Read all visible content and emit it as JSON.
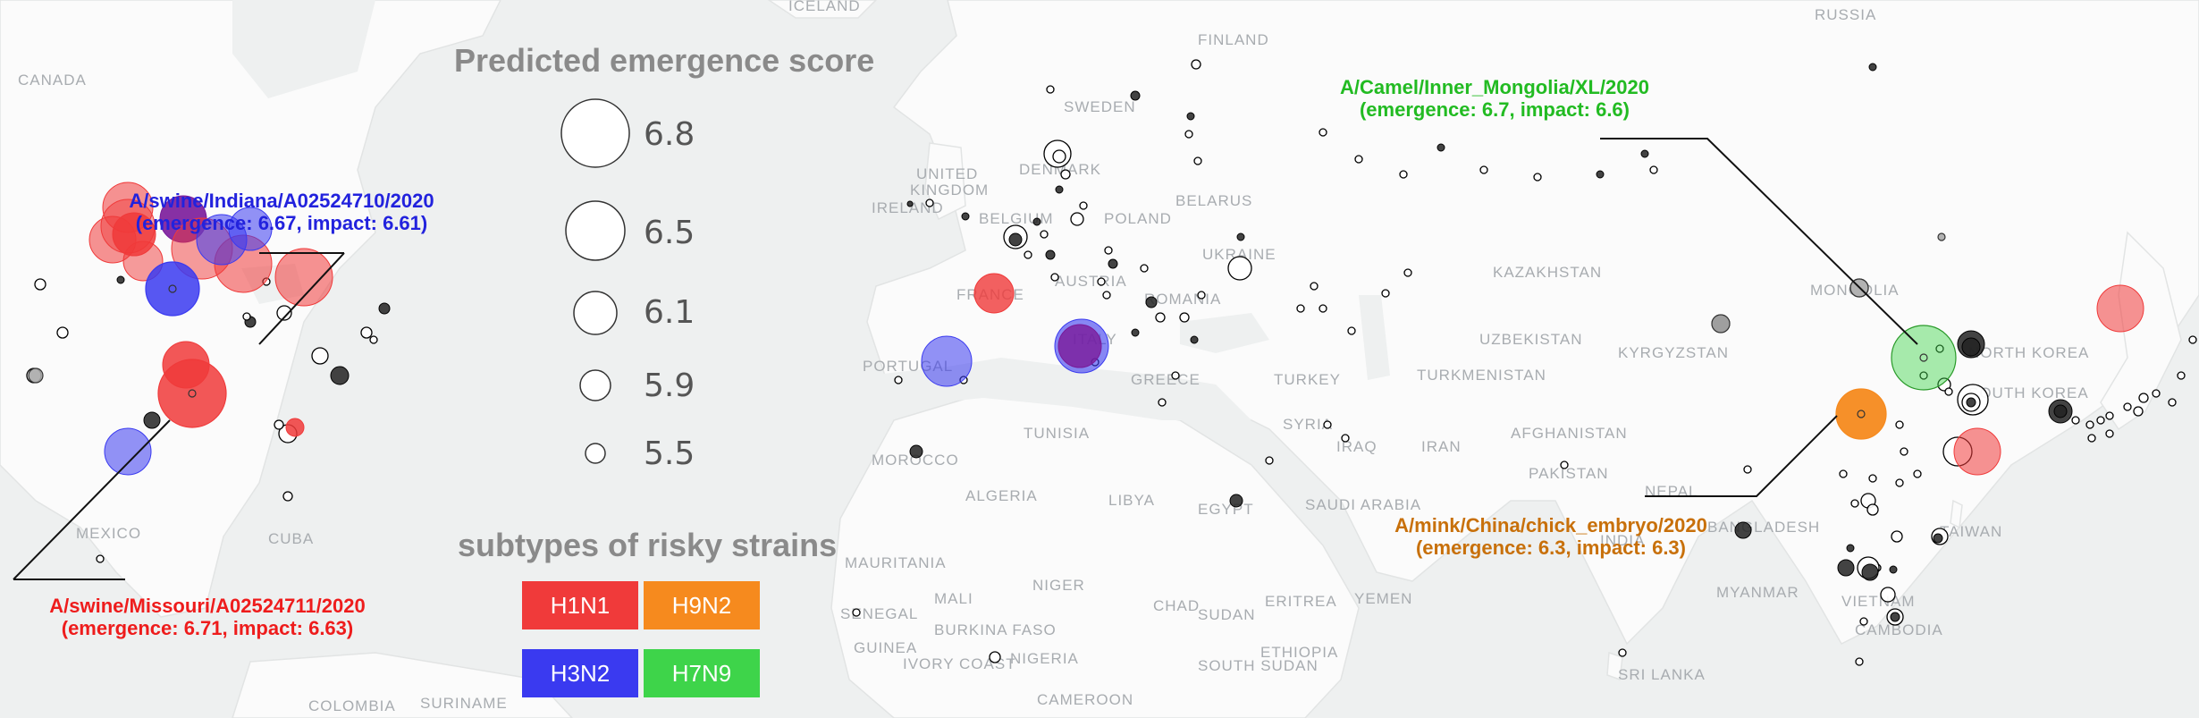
{
  "legend": {
    "size_title": "Predicted emergence score",
    "sizes": [
      "6.8",
      "6.5",
      "6.1",
      "5.9",
      "5.5"
    ],
    "subtype_title": "subtypes of risky strains",
    "subtypes": [
      {
        "label": "H1N1",
        "color": "#f03a3a"
      },
      {
        "label": "H9N2",
        "color": "#f68a1e"
      },
      {
        "label": "H3N2",
        "color": "#3a3af0"
      },
      {
        "label": "H7N9",
        "color": "#3ed44a"
      }
    ]
  },
  "annotations": [
    {
      "name": "A/swine/Indiana/A02524710/2020",
      "scores": "(emergence: 6.67, impact: 6.61)",
      "color": "#2222dd"
    },
    {
      "name": "A/swine/Missouri/A02524711/2020",
      "scores": "(emergence: 6.71, impact: 6.63)",
      "color": "#ee1c1c"
    },
    {
      "name": "A/Camel/Inner_Mongolia/XL/2020",
      "scores": "(emergence: 6.7, impact: 6.6)",
      "color": "#22bb22"
    },
    {
      "name": "A/mink/China/chick_embryo/2020",
      "scores": "(emergence: 6.3, impact: 6.3)",
      "color": "#c8700a"
    }
  ],
  "places": [
    "ICELAND",
    "RUSSIA",
    "CANADA",
    "FINLAND",
    "SWEDEN",
    "UNITED",
    "KINGDOM",
    "IRELAND",
    "DENMARK",
    "BELARUS",
    "POLAND",
    "BELGIUM",
    "UKRAINE",
    "FRANCE",
    "AUSTRIA",
    "ROMANIA",
    "KAZAKHSTAN",
    "MONGOLIA",
    "PORTUGAL",
    "ITALY",
    "GREECE",
    "TURKEY",
    "UZBEKISTAN",
    "KYRGYZSTAN",
    "TURKMENISTAN",
    "NORTH KOREA",
    "SOUTH KOREA",
    "SYRIA",
    "IRAQ",
    "IRAN",
    "AFGHANISTAN",
    "TUNISIA",
    "MOROCCO",
    "PAKISTAN",
    "ALGERIA",
    "LIBYA",
    "EGYPT",
    "SAUDI ARABIA",
    "NEPAL",
    "INDIA",
    "BANGLADESH",
    "TAIWAN",
    "MEXICO",
    "CUBA",
    "MAURITANIA",
    "MALI",
    "NIGER",
    "CHAD",
    "SUDAN",
    "ERITREA",
    "YEMEN",
    "MYANMAR",
    "SENEGAL",
    "GUINEA",
    "BURKINA FASO",
    "IVORY COAST",
    "NIGERIA",
    "ETHIOPIA",
    "SOUTH SUDAN",
    "VIETNAM",
    "CAMBODIA",
    "SRI LANKA",
    "CAMEROON",
    "COLOMBIA",
    "SURINAME"
  ],
  "strains": [
    {
      "lon": -86.1,
      "lat": 40.3,
      "subtype": "H3N2",
      "score": 6.67
    },
    {
      "lon": -92.3,
      "lat": 38.5,
      "subtype": "H1N1",
      "score": 6.71
    },
    {
      "lon": 111.7,
      "lat": 40.8,
      "subtype": "H7N9",
      "score": 6.7
    },
    {
      "lon": 105.0,
      "lat": 33.0,
      "subtype": "H9N2",
      "score": 6.3
    }
  ]
}
